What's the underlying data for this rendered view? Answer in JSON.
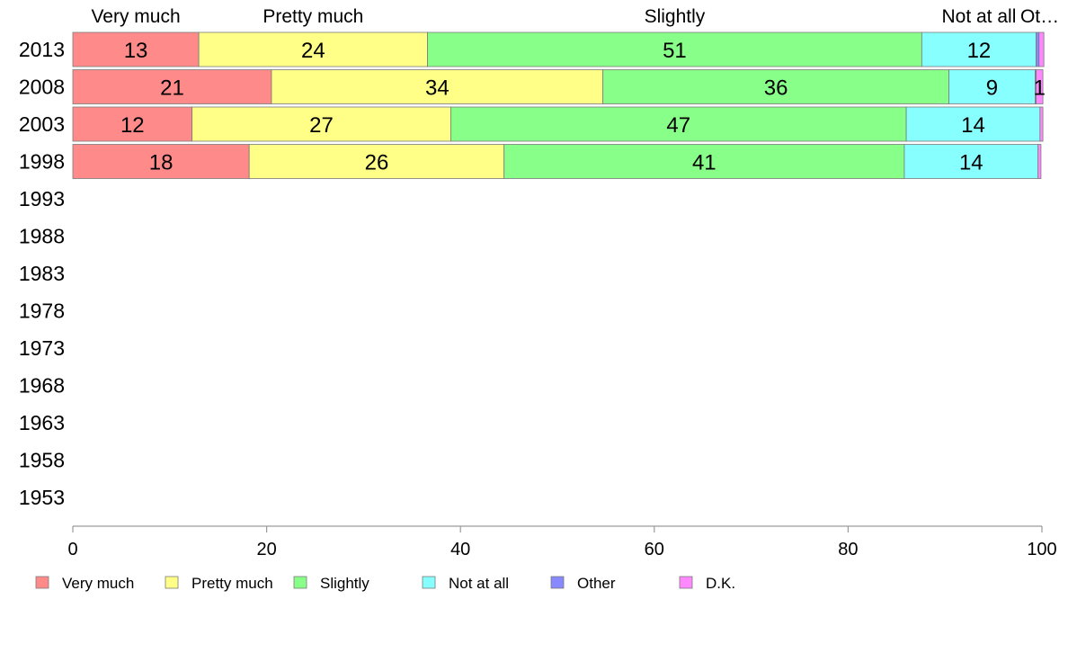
{
  "chart_data": {
    "type": "bar",
    "orientation": "horizontal",
    "stacked": true,
    "categories": [
      "2013",
      "2008",
      "2003",
      "1998",
      "1993",
      "1988",
      "1983",
      "1978",
      "1973",
      "1968",
      "1963",
      "1958",
      "1953"
    ],
    "series": [
      {
        "name": "Very much",
        "color": "#ff8a8a",
        "values": [
          13,
          20.5,
          12.3,
          18.2,
          null,
          null,
          null,
          null,
          null,
          null,
          null,
          null,
          null
        ],
        "labels": [
          "13",
          "21",
          "12",
          "18"
        ]
      },
      {
        "name": "Pretty much",
        "color": "#ffff88",
        "values": [
          23.6,
          34.2,
          26.7,
          26.3,
          null,
          null,
          null,
          null,
          null,
          null,
          null,
          null,
          null
        ],
        "labels": [
          "24",
          "34",
          "27",
          "26"
        ]
      },
      {
        "name": "Slightly",
        "color": "#88ff88",
        "values": [
          51.0,
          35.7,
          47.0,
          41.3,
          null,
          null,
          null,
          null,
          null,
          null,
          null,
          null,
          null
        ],
        "labels": [
          "51",
          "36",
          "47",
          "41"
        ]
      },
      {
        "name": "Not at all",
        "color": "#88ffff",
        "values": [
          11.8,
          8.9,
          13.8,
          13.8,
          null,
          null,
          null,
          null,
          null,
          null,
          null,
          null,
          null
        ],
        "labels": [
          "12",
          "9",
          "14",
          "14"
        ]
      },
      {
        "name": "Other",
        "color": "#8888ff",
        "values": [
          0.3,
          0.1,
          0,
          0,
          null,
          null,
          null,
          null,
          null,
          null,
          null,
          null,
          null
        ],
        "labels": [
          "",
          "",
          "",
          ""
        ]
      },
      {
        "name": "D.K.",
        "color": "#ff88ff",
        "values": [
          0.5,
          0.7,
          0.3,
          0.3,
          null,
          null,
          null,
          null,
          null,
          null,
          null,
          null,
          null
        ],
        "labels": [
          "",
          "1",
          "",
          ""
        ]
      }
    ],
    "top_labels": [
      "Very much",
      "Pretty much",
      "Slightly",
      "Not at all",
      "Ot…"
    ],
    "xlim": [
      0,
      100
    ],
    "xticks": [
      0,
      20,
      40,
      60,
      80,
      100
    ],
    "legend_position": "bottom",
    "grid": false
  }
}
